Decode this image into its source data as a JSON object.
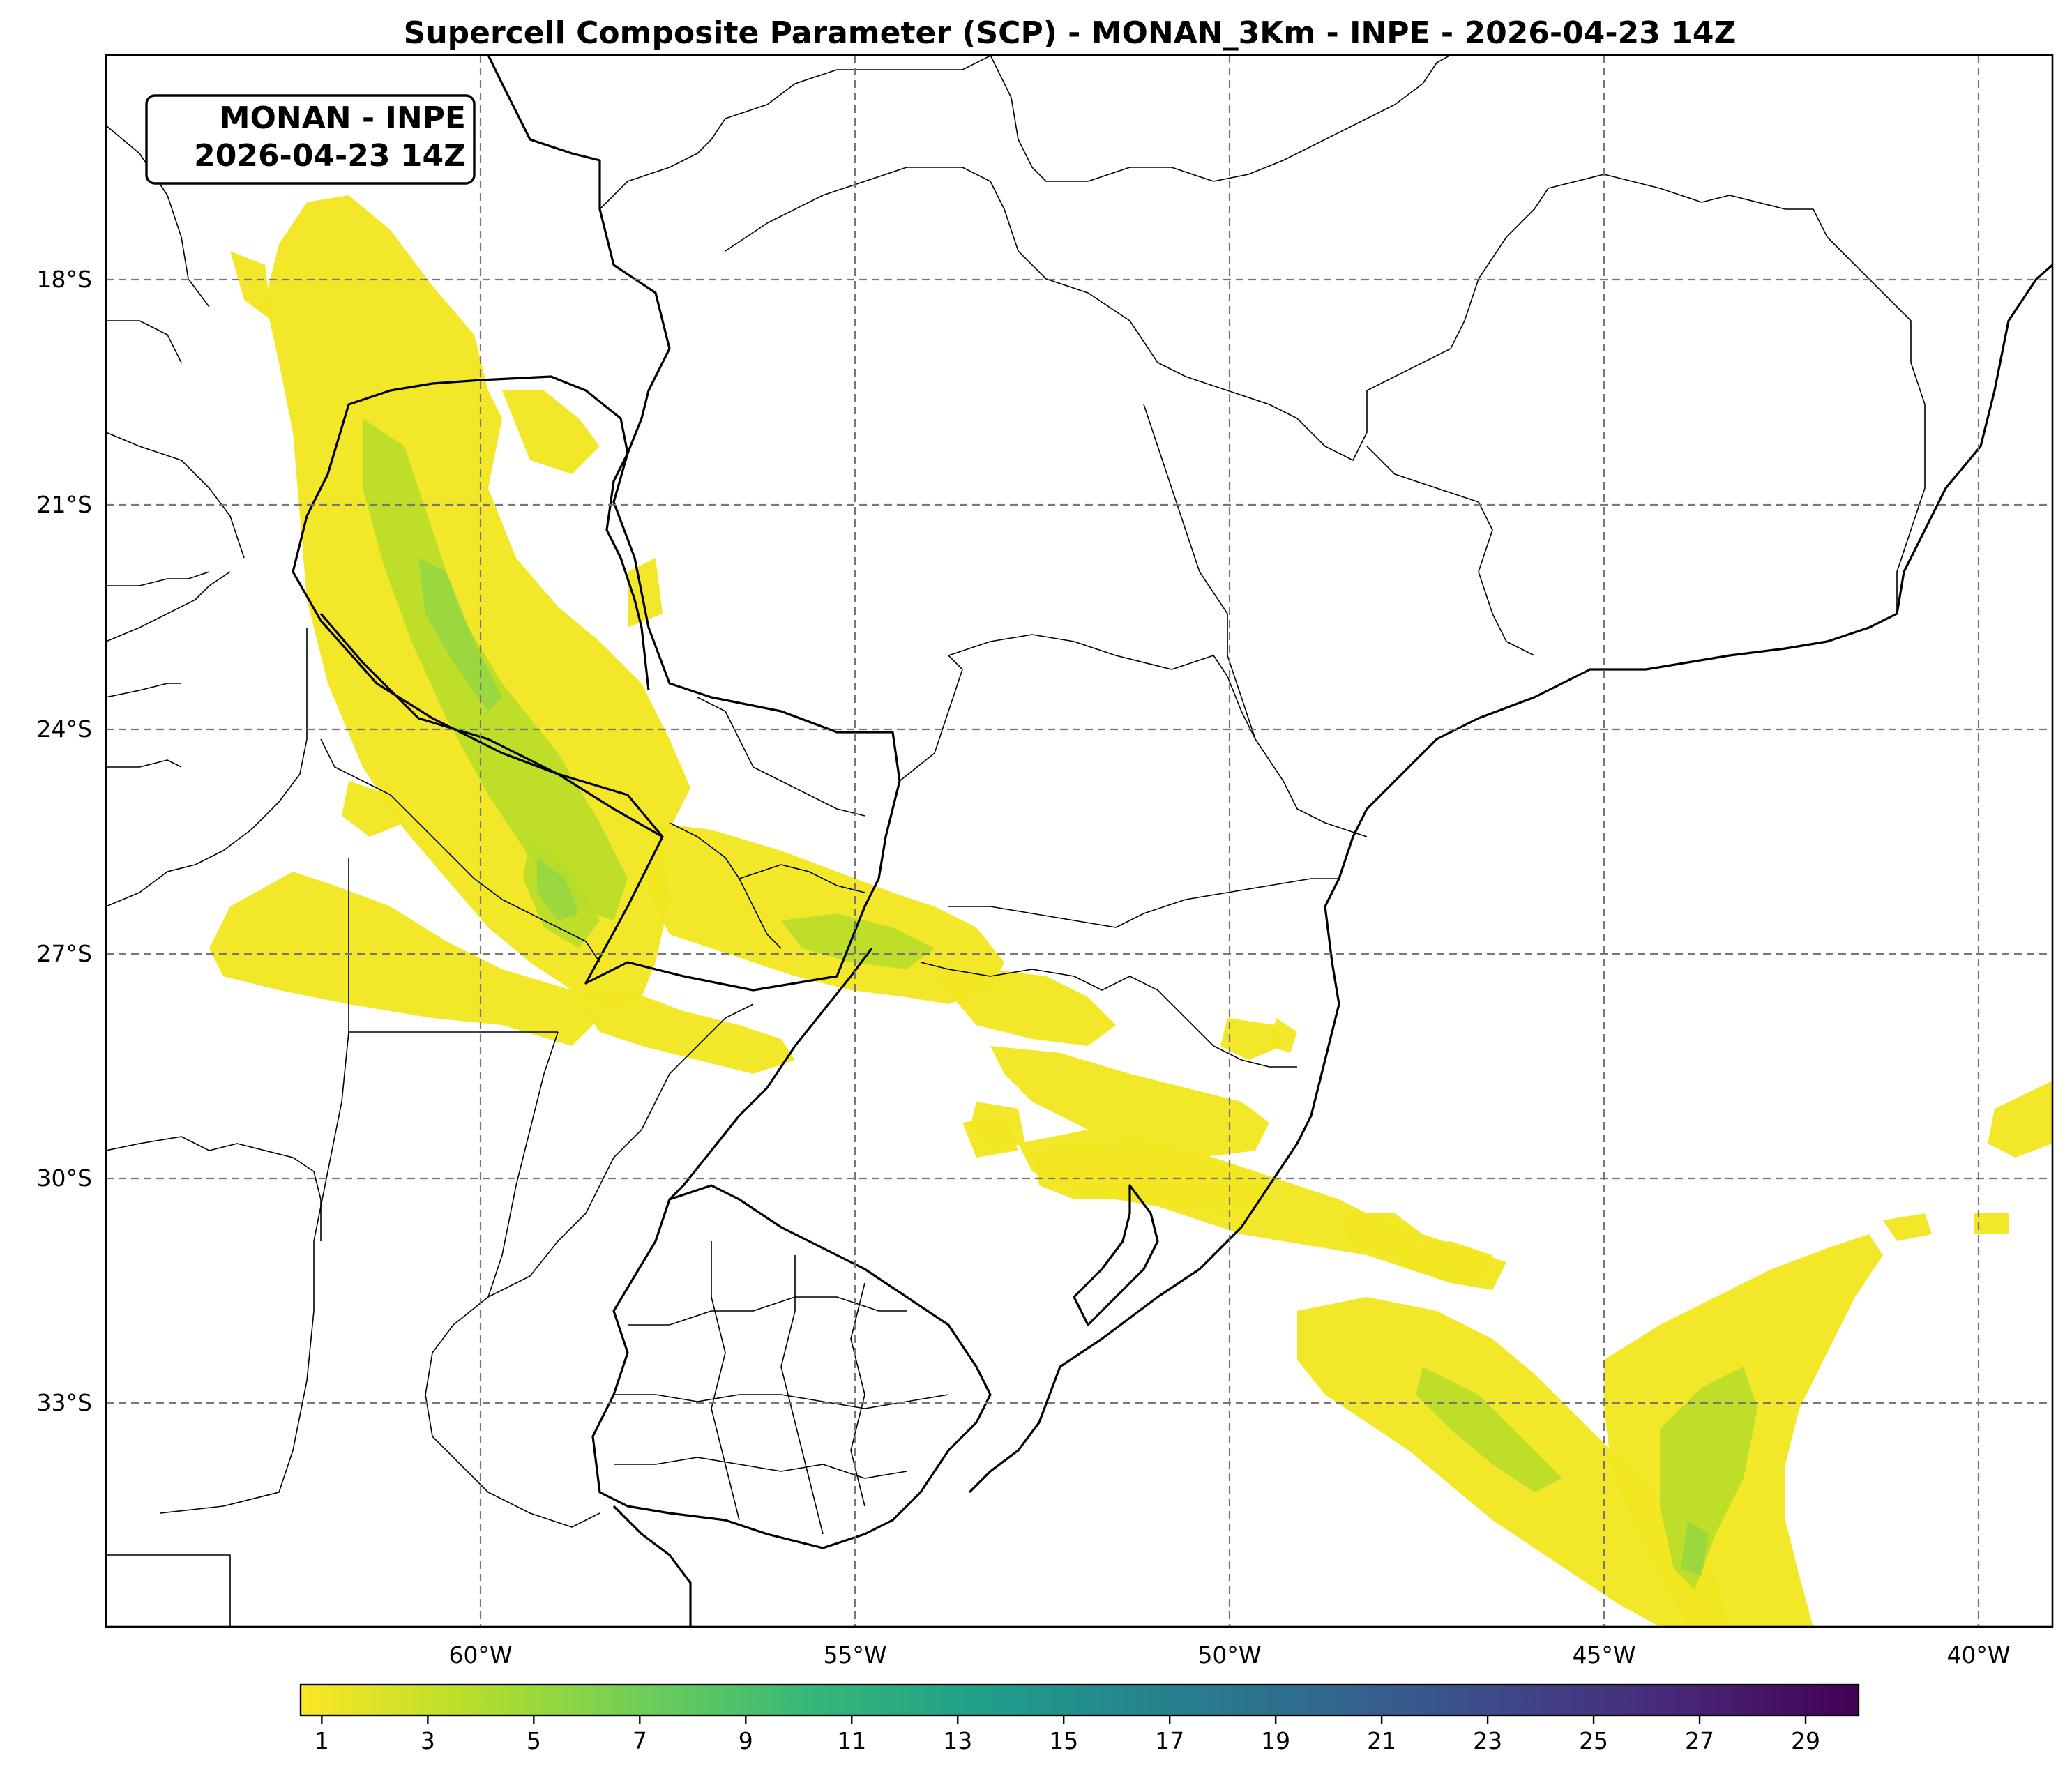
{
  "title": "Supercell Composite Parameter (SCP) - MONAN_3Km - INPE - 2026-04-23 14Z",
  "badge": {
    "line1": "MONAN - INPE",
    "line2": "2026-04-23 14Z"
  },
  "axes": {
    "lat_labels": [
      "18°S",
      "21°S",
      "24°S",
      "27°S",
      "30°S",
      "33°S"
    ],
    "lon_labels": [
      "60°W",
      "55°W",
      "50°W",
      "45°W",
      "40°W"
    ],
    "extent": {
      "lon_min": -65,
      "lon_max": -39,
      "lat_min": -36,
      "lat_max": -15
    },
    "gridlines": "dashed"
  },
  "colorbar": {
    "colormap": "viridis_r",
    "vmin": 0.6,
    "vmax": 30,
    "ticks": [
      "1",
      "3",
      "5",
      "7",
      "9",
      "11",
      "13",
      "15",
      "17",
      "19",
      "21",
      "23",
      "25",
      "27",
      "29"
    ],
    "colors": [
      "#fde725",
      "#b5de2b",
      "#6ece58",
      "#35b779",
      "#1f9e89",
      "#26828e",
      "#31688e",
      "#3e4989",
      "#482878",
      "#440154"
    ]
  },
  "colors": {
    "field_low": "#f3e622",
    "field_mid": "#b5dc2a",
    "field_high": "#8ed645",
    "border": "#000000",
    "grid": "#777777"
  }
}
